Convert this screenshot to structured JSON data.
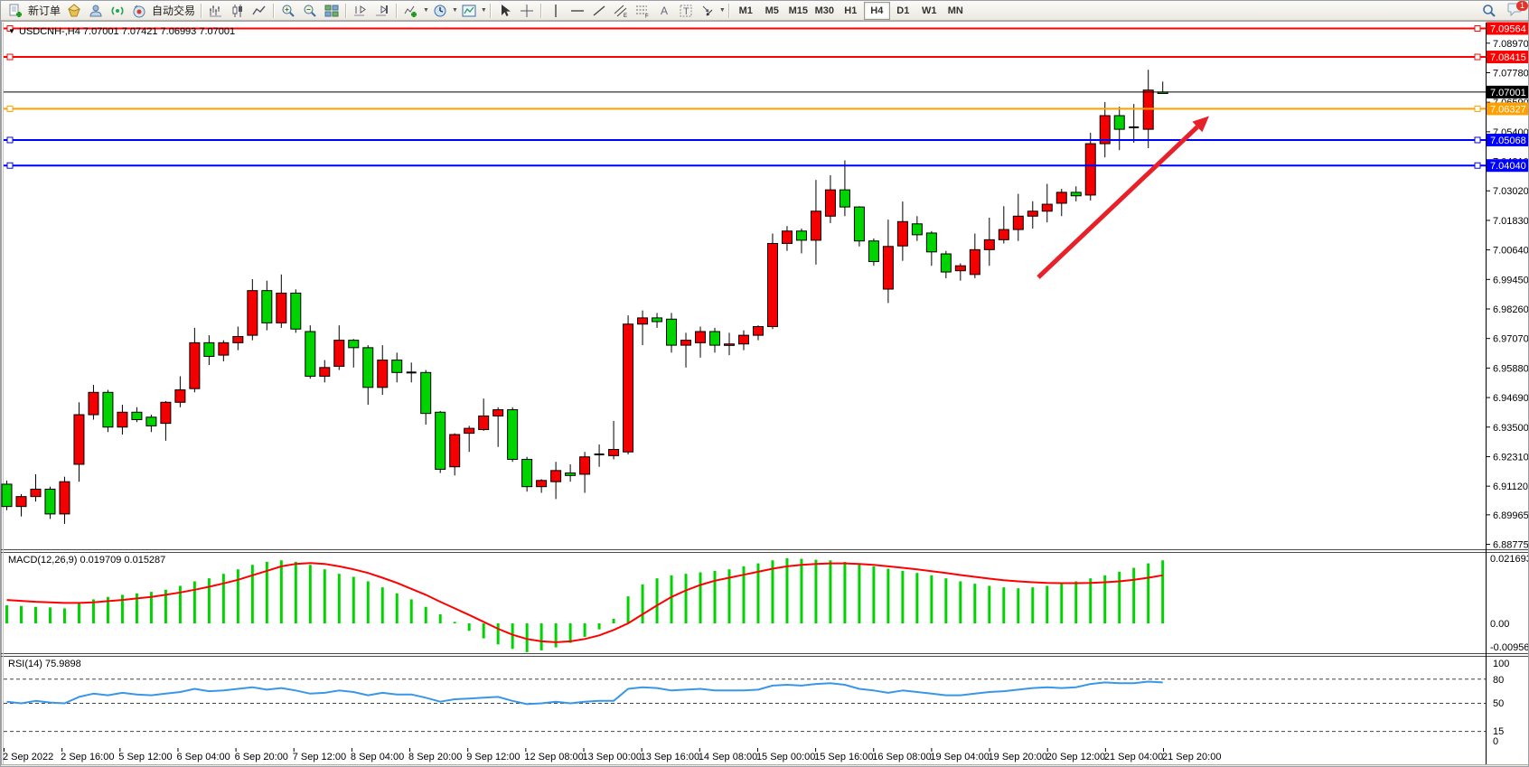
{
  "toolbar": {
    "new_order_label": "新订单",
    "autotrade_label": "自动交易",
    "timeframes": [
      "M1",
      "M5",
      "M15",
      "M30",
      "H1",
      "H4",
      "D1",
      "W1",
      "MN"
    ],
    "active_timeframe": "H4",
    "notification_count": "1"
  },
  "chart": {
    "title": "USDCNH-,H4  7.07001 7.07421 7.06993 7.07001",
    "symbol": "USDCNH-",
    "period": "H4",
    "open": "7.07001",
    "high": "7.07421",
    "low": "7.06993",
    "close": "7.07001",
    "macd_label": "MACD(12,26,9) 0.019709 0.015287",
    "rsi_label": "RSI(14) 75.9898",
    "current_price_label": "7.07001"
  },
  "chart_data": {
    "type": "candlestick",
    "symbol": "USDCNH-",
    "timeframe": "H4",
    "colors": {
      "up": "#f40000",
      "down": "#00d400",
      "doji": "#000000",
      "macd_hist": "#00d400",
      "macd_signal": "#ff0000",
      "rsi_line": "#3a97e8",
      "arrow": "#e8202a"
    },
    "price_axis_ticks": [
      7.0897,
      7.0778,
      7.0659,
      7.054,
      7.0421,
      7.0302,
      7.0183,
      7.0064,
      6.9945,
      6.9826,
      6.9707,
      6.9588,
      6.9469,
      6.935,
      6.9231,
      6.9112,
      6.89965,
      6.88775
    ],
    "hlines": [
      {
        "price": 7.09564,
        "color": "#ff0000",
        "label": "7.09564",
        "markers": true
      },
      {
        "price": 7.08415,
        "color": "#ff0000",
        "label": "7.08415",
        "markers": true
      },
      {
        "price": 7.07001,
        "color": "#000000",
        "label": "7.07001",
        "markers": false
      },
      {
        "price": 7.06327,
        "color": "#ffa000",
        "label": "7.06327",
        "markers": true
      },
      {
        "price": 7.05068,
        "color": "#0000ff",
        "label": "7.05068",
        "markers": true
      },
      {
        "price": 7.0404,
        "color": "#0000ff",
        "label": "7.04040",
        "markers": true
      }
    ],
    "candles": [
      [
        6.912,
        6.9135,
        6.9015,
        6.903,
        "d"
      ],
      [
        6.903,
        6.908,
        6.899,
        6.907,
        "u"
      ],
      [
        6.907,
        6.916,
        6.905,
        6.91,
        "u"
      ],
      [
        6.91,
        6.911,
        6.898,
        6.9,
        "d"
      ],
      [
        6.9,
        6.915,
        6.896,
        6.913,
        "u"
      ],
      [
        6.92,
        6.945,
        6.913,
        6.94,
        "u"
      ],
      [
        6.94,
        6.952,
        6.938,
        6.949,
        "u"
      ],
      [
        6.949,
        6.95,
        6.933,
        6.935,
        "d"
      ],
      [
        6.935,
        6.944,
        6.932,
        6.941,
        "u"
      ],
      [
        6.941,
        6.943,
        6.937,
        6.938,
        "d"
      ],
      [
        6.939,
        6.94,
        6.933,
        6.9355,
        "d"
      ],
      [
        6.9365,
        6.9455,
        6.9295,
        6.945,
        "u"
      ],
      [
        6.945,
        6.9555,
        6.943,
        6.95,
        "u"
      ],
      [
        6.9505,
        6.975,
        6.949,
        6.969,
        "u"
      ],
      [
        6.969,
        6.972,
        6.96,
        6.9635,
        "d"
      ],
      [
        6.964,
        6.97,
        6.9615,
        6.969,
        "u"
      ],
      [
        6.969,
        6.9755,
        6.966,
        6.9715,
        "u"
      ],
      [
        6.972,
        6.9946,
        6.97,
        6.99,
        "u"
      ],
      [
        6.99,
        6.994,
        6.974,
        6.977,
        "d"
      ],
      [
        6.977,
        6.9965,
        6.975,
        6.989,
        "u"
      ],
      [
        6.989,
        6.9905,
        6.973,
        6.9745,
        "d"
      ],
      [
        6.9735,
        6.976,
        6.9545,
        6.9555,
        "d"
      ],
      [
        6.9555,
        6.962,
        6.953,
        6.959,
        "u"
      ],
      [
        6.9595,
        6.976,
        6.958,
        6.97,
        "u"
      ],
      [
        6.97,
        6.9705,
        6.959,
        6.967,
        "d"
      ],
      [
        6.967,
        6.968,
        6.944,
        6.951,
        "d"
      ],
      [
        6.951,
        6.968,
        6.948,
        6.962,
        "u"
      ],
      [
        6.962,
        6.965,
        6.953,
        6.957,
        "d"
      ],
      [
        6.957,
        6.961,
        6.953,
        6.957,
        "x"
      ],
      [
        6.957,
        6.958,
        6.936,
        6.9405,
        "d"
      ],
      [
        6.941,
        6.9415,
        6.9165,
        6.918,
        "d"
      ],
      [
        6.919,
        6.9325,
        6.9155,
        6.932,
        "u"
      ],
      [
        6.9325,
        6.9355,
        6.925,
        6.9345,
        "u"
      ],
      [
        6.934,
        6.9465,
        6.9335,
        6.9395,
        "u"
      ],
      [
        6.9395,
        6.943,
        6.927,
        6.942,
        "u"
      ],
      [
        6.942,
        6.943,
        6.921,
        6.922,
        "d"
      ],
      [
        6.922,
        6.923,
        6.909,
        6.911,
        "d"
      ],
      [
        6.911,
        6.914,
        6.9085,
        6.9135,
        "u"
      ],
      [
        6.913,
        6.921,
        6.906,
        6.9175,
        "u"
      ],
      [
        6.9165,
        6.92,
        6.913,
        6.9155,
        "d"
      ],
      [
        6.916,
        6.925,
        6.9085,
        6.923,
        "u"
      ],
      [
        6.924,
        6.928,
        6.919,
        6.924,
        "x"
      ],
      [
        6.9235,
        6.9375,
        6.922,
        6.926,
        "u"
      ],
      [
        6.925,
        6.98,
        6.924,
        6.9765,
        "u"
      ],
      [
        6.9765,
        6.982,
        6.968,
        6.979,
        "u"
      ],
      [
        6.979,
        6.981,
        6.975,
        6.9775,
        "d"
      ],
      [
        6.9785,
        6.981,
        6.965,
        6.968,
        "d"
      ],
      [
        6.968,
        6.973,
        6.959,
        6.97,
        "u"
      ],
      [
        6.969,
        6.9755,
        6.963,
        6.9735,
        "u"
      ],
      [
        6.9735,
        6.975,
        6.965,
        6.968,
        "d"
      ],
      [
        6.968,
        6.973,
        6.964,
        6.9685,
        "u"
      ],
      [
        6.9685,
        6.974,
        6.966,
        6.972,
        "u"
      ],
      [
        6.972,
        6.976,
        6.97,
        6.9755,
        "u"
      ],
      [
        6.9755,
        7.013,
        6.9745,
        7.009,
        "u"
      ],
      [
        7.009,
        7.016,
        7.006,
        7.014,
        "u"
      ],
      [
        7.014,
        7.015,
        7.005,
        7.0103,
        "d"
      ],
      [
        7.0103,
        7.0346,
        7.0005,
        7.022,
        "u"
      ],
      [
        7.02,
        7.0365,
        7.0172,
        7.0306,
        "u"
      ],
      [
        7.0306,
        7.0425,
        7.02,
        7.0237,
        "d"
      ],
      [
        7.0237,
        7.024,
        7.0078,
        7.01,
        "d"
      ],
      [
        7.01,
        7.011,
        7.0,
        7.0017,
        "d"
      ],
      [
        6.9906,
        7.0186,
        6.985,
        7.0078,
        "u"
      ],
      [
        7.008,
        7.0259,
        7.002,
        7.0178,
        "u"
      ],
      [
        7.0169,
        7.02,
        7.01,
        7.0125,
        "d"
      ],
      [
        7.0132,
        7.014,
        7.0,
        7.0056,
        "d"
      ],
      [
        7.0048,
        7.006,
        6.995,
        6.9975,
        "d"
      ],
      [
        6.998,
        7.001,
        6.994,
        7.0,
        "u"
      ],
      [
        6.9965,
        7.013,
        6.995,
        7.0065,
        "u"
      ],
      [
        7.0065,
        7.0194,
        7.0,
        7.0105,
        "u"
      ],
      [
        7.0105,
        7.024,
        7.009,
        7.0146,
        "u"
      ],
      [
        7.0146,
        7.029,
        7.01,
        7.02,
        "u"
      ],
      [
        7.02,
        7.026,
        7.015,
        7.022,
        "u"
      ],
      [
        7.022,
        7.033,
        7.0175,
        7.0248,
        "u"
      ],
      [
        7.0252,
        7.031,
        7.02,
        7.0296,
        "u"
      ],
      [
        7.0296,
        7.032,
        7.026,
        7.0282,
        "d"
      ],
      [
        7.0285,
        7.0536,
        7.0263,
        7.0492,
        "u"
      ],
      [
        7.0492,
        7.066,
        7.0437,
        7.0605,
        "u"
      ],
      [
        7.0605,
        7.0641,
        7.0466,
        7.055,
        "d"
      ],
      [
        7.0558,
        7.0652,
        7.0496,
        7.0558,
        "x"
      ],
      [
        7.055,
        7.079,
        7.0474,
        7.0708,
        "u"
      ],
      [
        7.07001,
        7.07421,
        7.06993,
        7.07001,
        "d"
      ]
    ],
    "macd": {
      "label": "MACD(12,26,9) 0.019709 0.015287",
      "params": "12,26,9",
      "value_main": 0.019709,
      "value_signal": 0.015287,
      "axis_labels": [
        "0.021693",
        "0.00",
        "-0.009563"
      ],
      "hist": [
        0.006,
        0.0058,
        0.0055,
        0.0053,
        0.005,
        0.0068,
        0.008,
        0.0088,
        0.0095,
        0.01,
        0.0105,
        0.0112,
        0.0125,
        0.014,
        0.015,
        0.0165,
        0.018,
        0.0195,
        0.0205,
        0.021,
        0.0205,
        0.0195,
        0.018,
        0.0165,
        0.0155,
        0.014,
        0.012,
        0.01,
        0.008,
        0.0055,
        0.003,
        0.0005,
        -0.0025,
        -0.005,
        -0.007,
        -0.0085,
        -0.0096,
        -0.009,
        -0.008,
        -0.0065,
        -0.0045,
        -0.002,
        0.0015,
        0.009,
        0.013,
        0.015,
        0.016,
        0.0165,
        0.017,
        0.0175,
        0.018,
        0.019,
        0.02,
        0.021,
        0.0217,
        0.0215,
        0.0212,
        0.021,
        0.0205,
        0.0198,
        0.019,
        0.0182,
        0.0175,
        0.0168,
        0.016,
        0.015,
        0.014,
        0.0132,
        0.0125,
        0.012,
        0.0117,
        0.012,
        0.0125,
        0.0132,
        0.014,
        0.015,
        0.016,
        0.0172,
        0.0185,
        0.02,
        0.021
      ],
      "signal": [
        0.0078,
        0.0075,
        0.0072,
        0.007,
        0.0068,
        0.0068,
        0.007,
        0.0074,
        0.0078,
        0.0083,
        0.0088,
        0.0095,
        0.0103,
        0.0112,
        0.0122,
        0.0133,
        0.0145,
        0.016,
        0.0175,
        0.019,
        0.0198,
        0.0201,
        0.0198,
        0.019,
        0.018,
        0.0168,
        0.0152,
        0.0135,
        0.0115,
        0.0095,
        0.0072,
        0.005,
        0.0028,
        0.0005,
        -0.0018,
        -0.0038,
        -0.0052,
        -0.006,
        -0.0063,
        -0.006,
        -0.0052,
        -0.004,
        -0.0022,
        0.0,
        0.003,
        0.006,
        0.0088,
        0.011,
        0.0128,
        0.0142,
        0.0152,
        0.0162,
        0.0172,
        0.0182,
        0.019,
        0.0195,
        0.0198,
        0.02,
        0.02,
        0.0198,
        0.0195,
        0.019,
        0.0185,
        0.018,
        0.0174,
        0.0168,
        0.0161,
        0.0155,
        0.0149,
        0.0144,
        0.014,
        0.0137,
        0.0135,
        0.0134,
        0.0134,
        0.0135,
        0.0137,
        0.014,
        0.0145,
        0.0152,
        0.016
      ]
    },
    "rsi": {
      "label": "RSI(14) 75.9898",
      "period": 14,
      "current": 75.9898,
      "levels": [
        80,
        50,
        15
      ],
      "axis_labels": [
        "100",
        "80",
        "50",
        "15",
        "0"
      ],
      "values": [
        52,
        50,
        53,
        51,
        50,
        58,
        62,
        60,
        63,
        61,
        60,
        62,
        64,
        68,
        65,
        66,
        68,
        70,
        67,
        69,
        66,
        62,
        63,
        66,
        64,
        60,
        63,
        61,
        61,
        57,
        52,
        55,
        56,
        57,
        58,
        53,
        49,
        50,
        52,
        50,
        52,
        53,
        53,
        68,
        70,
        69,
        66,
        67,
        68,
        66,
        66,
        66,
        67,
        72,
        73,
        72,
        74,
        75,
        73,
        68,
        66,
        63,
        66,
        64,
        62,
        60,
        60,
        62,
        64,
        65,
        67,
        69,
        70,
        69,
        70,
        74,
        76,
        75,
        75,
        77,
        75.99
      ],
      "ylim": [
        0,
        100
      ]
    },
    "x_labels": [
      "2 Sep 2022",
      "2 Sep 16:00",
      "5 Sep 12:00",
      "6 Sep 04:00",
      "6 Sep 20:00",
      "7 Sep 12:00",
      "8 Sep 04:00",
      "8 Sep 20:00",
      "9 Sep 12:00",
      "12 Sep 08:00",
      "13 Sep 00:00",
      "13 Sep 16:00",
      "14 Sep 08:00",
      "15 Sep 00:00",
      "15 Sep 16:00",
      "16 Sep 08:00",
      "19 Sep 04:00",
      "19 Sep 20:00",
      "20 Sep 12:00",
      "21 Sep 04:00",
      "21 Sep 20:00"
    ],
    "arrow": {
      "from": [
        1148,
        284
      ],
      "to": [
        1337,
        105
      ],
      "color": "#e8202a"
    },
    "grid": false,
    "legend_position": "top-left"
  }
}
